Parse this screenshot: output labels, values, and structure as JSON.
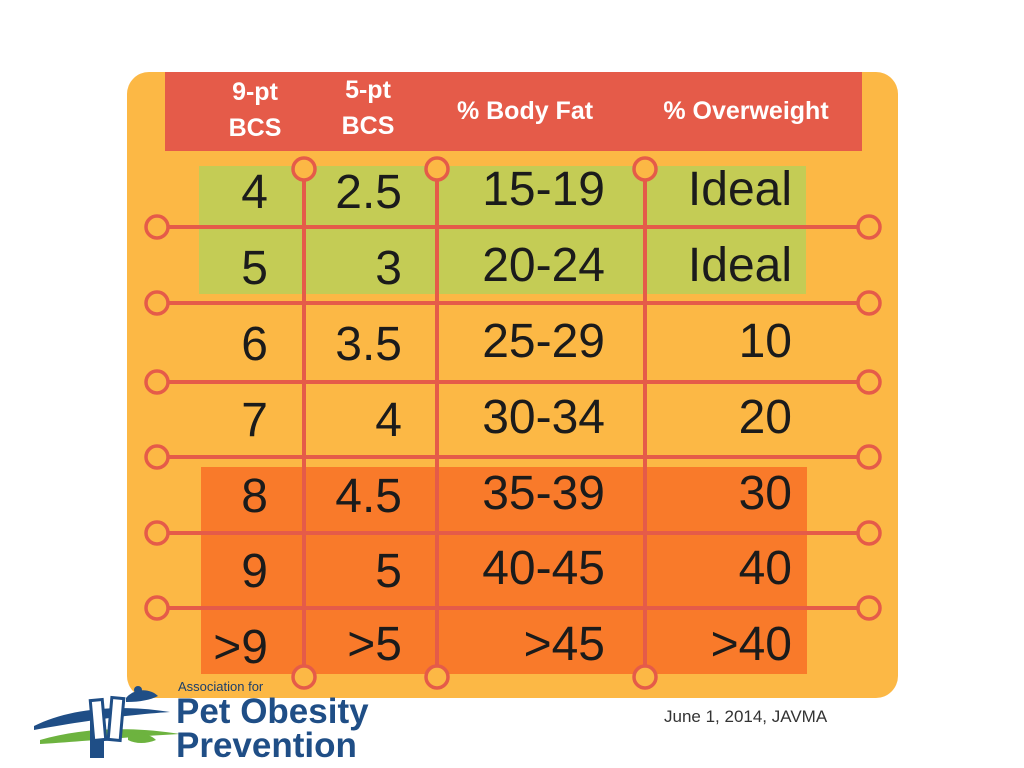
{
  "colors": {
    "card": "#fcb845",
    "header": "#e55b49",
    "ideal_band": "#c4cc55",
    "obese_band": "#f97a2a",
    "lines": "#e55b49",
    "logo_blue": "#1f4e86",
    "logo_green": "#6db33f"
  },
  "table": {
    "headers": [
      {
        "line1": "9-pt",
        "line2": "BCS"
      },
      {
        "line1": "5-pt",
        "line2": "BCS"
      },
      {
        "line1": "% Body Fat",
        "line2": ""
      },
      {
        "line1": "% Overweight",
        "line2": ""
      }
    ],
    "rows": [
      {
        "bcs9": "4",
        "bcs5": "2.5",
        "body_fat": "15-19",
        "overweight": "Ideal",
        "band": "ideal"
      },
      {
        "bcs9": "5",
        "bcs5": "3",
        "body_fat": "20-24",
        "overweight": "Ideal",
        "band": "ideal"
      },
      {
        "bcs9": "6",
        "bcs5": "3.5",
        "body_fat": "25-29",
        "overweight": "10",
        "band": "none"
      },
      {
        "bcs9": "7",
        "bcs5": "4",
        "body_fat": "30-34",
        "overweight": "20",
        "band": "none"
      },
      {
        "bcs9": "8",
        "bcs5": "4.5",
        "body_fat": "35-39",
        "overweight": "30",
        "band": "obese"
      },
      {
        "bcs9": "9",
        "bcs5": "5",
        "body_fat": "40-45",
        "overweight": "40",
        "band": "obese"
      },
      {
        "bcs9": ">9",
        "bcs5": ">5",
        "body_fat": ">45",
        "overweight": ">40",
        "band": "obese"
      }
    ]
  },
  "logo": {
    "small": "Association for",
    "line1": "Pet Obesity",
    "line2": "Prevention",
    "icon": "pet-scale-logo-icon"
  },
  "citation": "June 1, 2014, JAVMA"
}
